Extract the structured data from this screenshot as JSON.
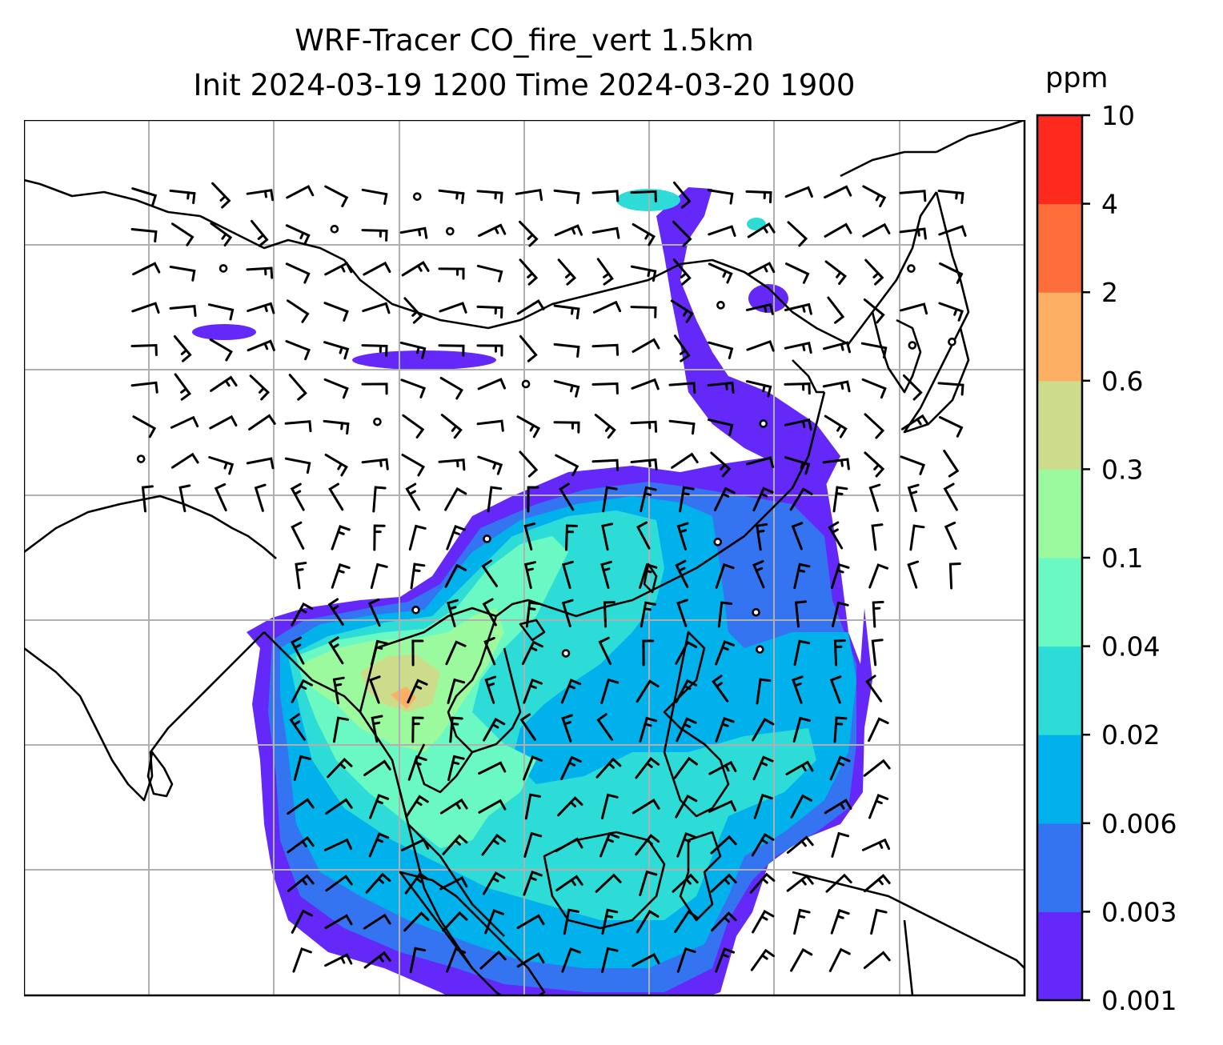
{
  "title": {
    "line1": "WRF-Tracer CO_fire_vert 1.5km",
    "line2": "Init 2024-03-19 1200 Time 2024-03-20 1900"
  },
  "colorbar": {
    "unit": "ppm",
    "levels": [
      "0.001",
      "0.003",
      "0.006",
      "0.02",
      "0.04",
      "0.1",
      "0.3",
      "0.6",
      "2",
      "4",
      "10"
    ],
    "colors": [
      "#6428f8",
      "#3574f0",
      "#00b1eb",
      "#2ddcd6",
      "#6af8c3",
      "#9bfa9e",
      "#cddc8a",
      "#fdb063",
      "#fe6e3a",
      "#fd2a1d"
    ]
  },
  "map": {
    "gridlines": true,
    "wind_barbs": true,
    "calm_markers": true
  }
}
